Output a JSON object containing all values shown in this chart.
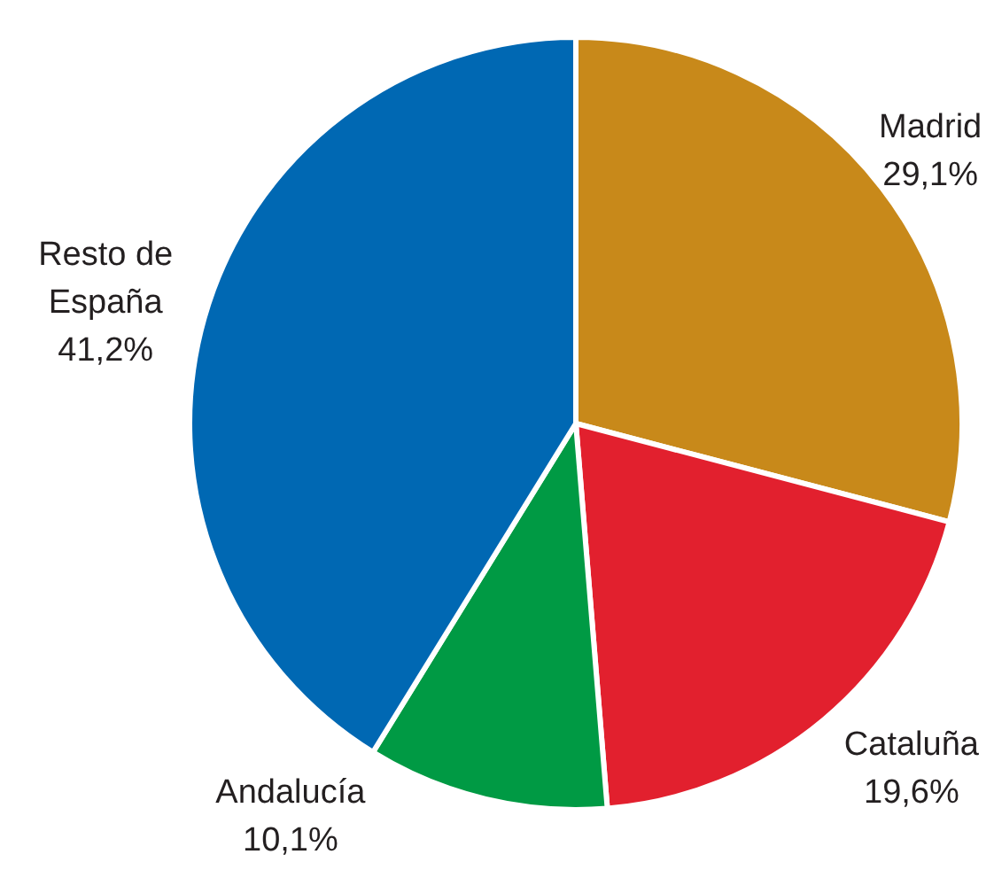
{
  "chart_data": {
    "type": "pie",
    "categories": [
      "Madrid",
      "Cataluña",
      "Andalucía",
      "Resto de\nEspaña"
    ],
    "values": [
      29.1,
      19.6,
      10.1,
      41.2
    ],
    "value_labels": [
      "29,1%",
      "19,6%",
      "10,1%",
      "41,2%"
    ],
    "colors": [
      "#c8891a",
      "#e2202e",
      "#009a44",
      "#0068b3"
    ]
  }
}
